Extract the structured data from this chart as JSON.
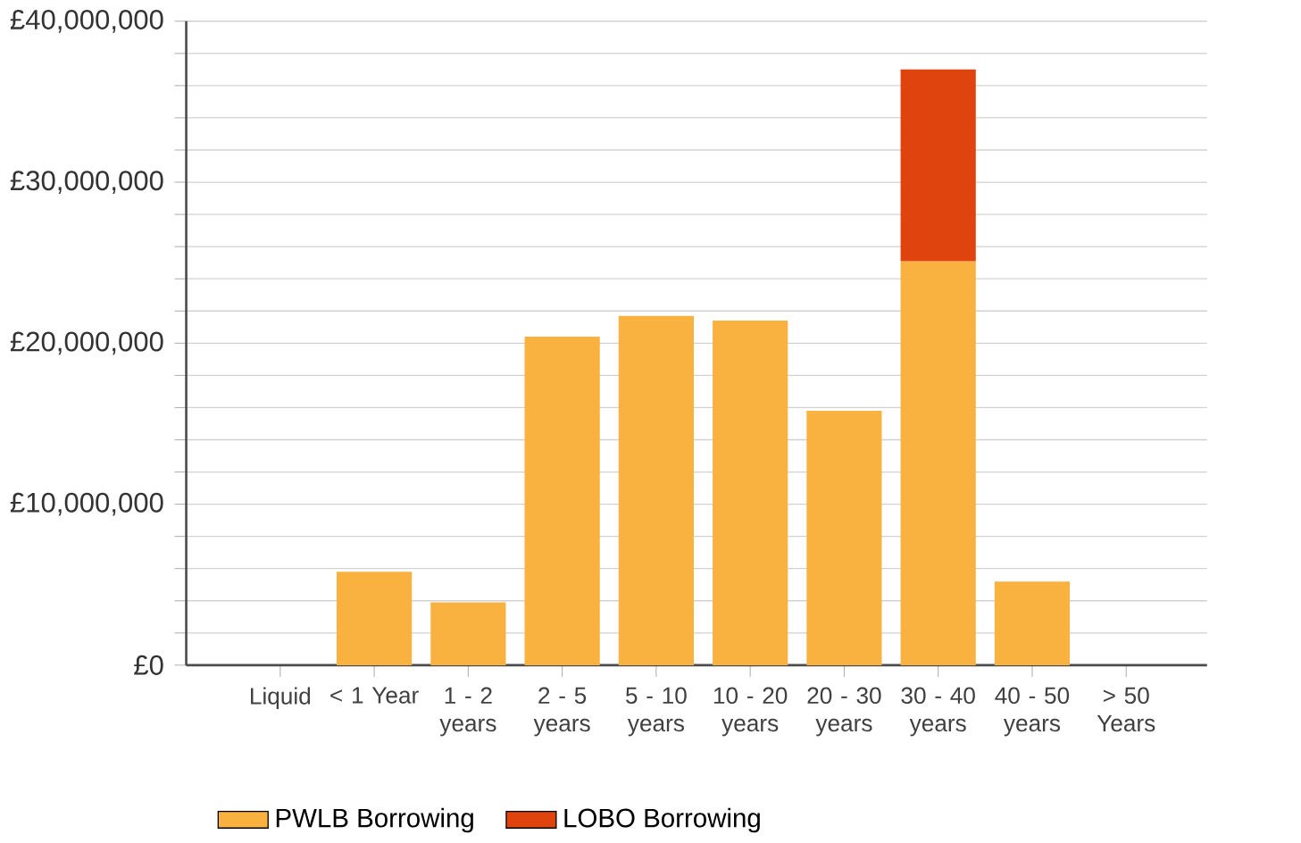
{
  "chart_data": {
    "type": "bar",
    "stacked": true,
    "categories": [
      "Liquid",
      "< 1 Year",
      "1 - 2 years",
      "2 - 5 years",
      "5 - 10 years",
      "10 - 20 years",
      "20 - 30 years",
      "30 - 40 years",
      "40 - 50 years",
      "> 50 Years"
    ],
    "series": [
      {
        "name": "PWLB Borrowing",
        "color": "#f9b240",
        "values": [
          0,
          5800000,
          3900000,
          20400000,
          21700000,
          21400000,
          15800000,
          25100000,
          5200000,
          0
        ]
      },
      {
        "name": "LOBO Borrowing",
        "color": "#e0440e",
        "values": [
          null,
          null,
          null,
          null,
          null,
          null,
          null,
          11900000,
          null,
          null
        ]
      }
    ],
    "ylim": [
      0,
      40000000
    ],
    "yticks": [
      {
        "value": 0,
        "label": "£0"
      },
      {
        "value": 2000000,
        "label": null
      },
      {
        "value": 4000000,
        "label": null
      },
      {
        "value": 6000000,
        "label": null
      },
      {
        "value": 8000000,
        "label": null
      },
      {
        "value": 10000000,
        "label": "£10,000,000"
      },
      {
        "value": 12000000,
        "label": null
      },
      {
        "value": 14000000,
        "label": null
      },
      {
        "value": 16000000,
        "label": null
      },
      {
        "value": 18000000,
        "label": null
      },
      {
        "value": 20000000,
        "label": "£20,000,000"
      },
      {
        "value": 22000000,
        "label": null
      },
      {
        "value": 24000000,
        "label": null
      },
      {
        "value": 26000000,
        "label": null
      },
      {
        "value": 28000000,
        "label": null
      },
      {
        "value": 30000000,
        "label": "£30,000,000"
      },
      {
        "value": 32000000,
        "label": null
      },
      {
        "value": 34000000,
        "label": null
      },
      {
        "value": 36000000,
        "label": null
      },
      {
        "value": 38000000,
        "label": null
      },
      {
        "value": 40000000,
        "label": "£40,000,000"
      }
    ],
    "grid": "y",
    "legend": "bottom"
  }
}
